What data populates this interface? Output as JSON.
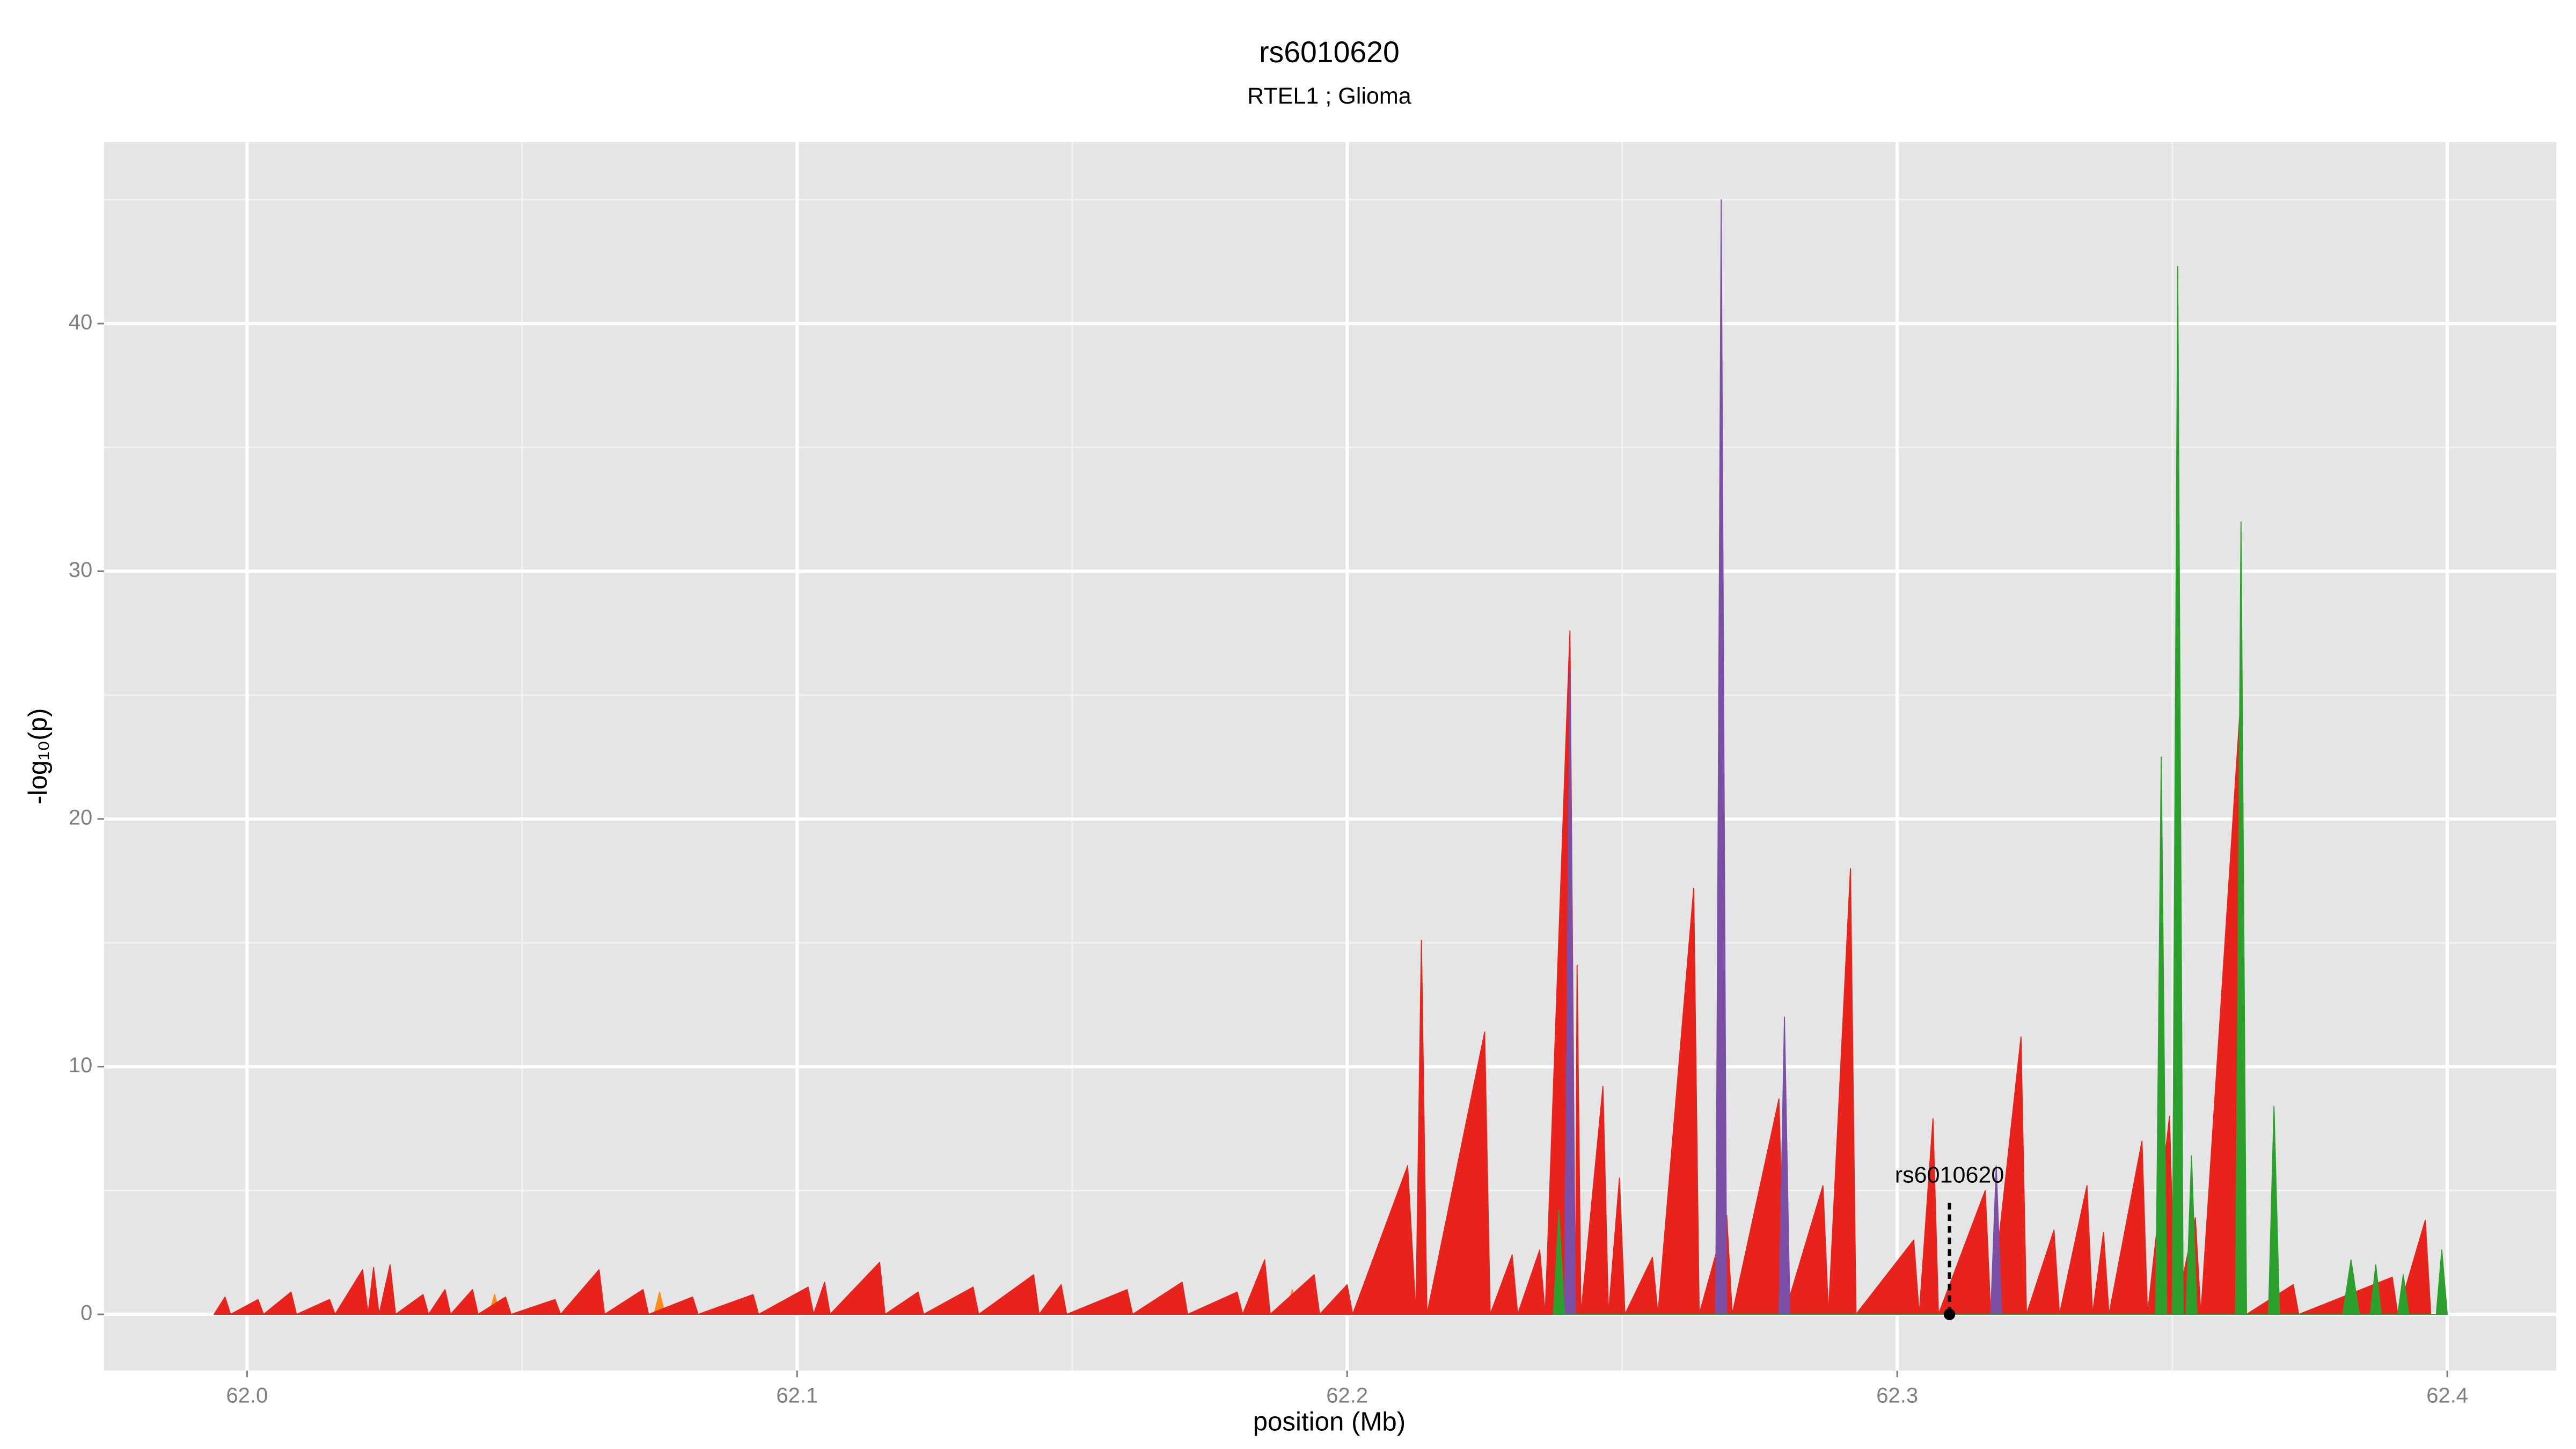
{
  "chart_data": {
    "type": "area",
    "title": "rs6010620",
    "subtitle": "RTEL1 ; Glioma",
    "x_label": "position (Mb)",
    "y_label": "-log₁₀(p)",
    "xlim": [
      61.974,
      62.4198
    ],
    "ylim": [
      -2.27,
      47.33
    ],
    "xticks": [
      {
        "value": 62,
        "label": "62.0"
      },
      62.1,
      62.2,
      62.3,
      62.4
    ],
    "yticks": [
      0,
      10,
      20,
      30,
      40
    ],
    "xminor": [
      62.05,
      62.15,
      62.25,
      62.35
    ],
    "yminor": [
      5,
      15,
      25,
      35,
      45
    ],
    "grid": true,
    "series": [
      {
        "color": "#ff8c1a",
        "x": [
          62.044,
          62.045,
          62.046,
          62.074,
          62.075,
          62.076,
          62.189,
          62.19,
          62.191
        ],
        "values": [
          0,
          0.8,
          0,
          0,
          0.9,
          0,
          0,
          1.0,
          0
        ]
      },
      {
        "color": "#e8231c",
        "x": [
          61.994,
          61.996,
          61.997,
          62.002,
          62.003,
          62.008,
          62.009,
          62.015,
          62.016,
          62.021,
          62.022,
          62.023,
          62.024,
          62.026,
          62.027,
          62.032,
          62.033,
          62.036,
          62.037,
          62.041,
          62.042,
          62.047,
          62.048,
          62.056,
          62.057,
          62.064,
          62.065,
          62.072,
          62.073,
          62.081,
          62.082,
          62.092,
          62.093,
          62.102,
          62.103,
          62.105,
          62.106,
          62.115,
          62.116,
          62.122,
          62.123,
          62.132,
          62.133,
          62.143,
          62.144,
          62.148,
          62.149,
          62.16,
          62.161,
          62.17,
          62.171,
          62.18,
          62.181,
          62.185,
          62.186,
          62.194,
          62.195,
          62.2,
          62.201,
          62.211,
          62.2125,
          62.2135,
          62.2145,
          62.225,
          62.226,
          62.23,
          62.231,
          62.235,
          62.236,
          62.2405,
          62.2415,
          62.2418,
          62.2425,
          62.2465,
          62.2475,
          62.2495,
          62.2505,
          62.2555,
          62.2565,
          62.263,
          62.264,
          62.269,
          62.27,
          62.2785,
          62.2795,
          62.2865,
          62.2875,
          62.2915,
          62.2925,
          62.303,
          62.304,
          62.3065,
          62.3075,
          62.316,
          62.317,
          62.3225,
          62.3235,
          62.3285,
          62.3295,
          62.3345,
          62.3355,
          62.3375,
          62.3385,
          62.3445,
          62.3455,
          62.3495,
          62.3505,
          62.3542,
          62.3552,
          62.3625,
          62.3635,
          62.372,
          62.373,
          62.39,
          62.391,
          62.396,
          62.397,
          62.4
        ],
        "values": [
          0,
          0.7,
          0,
          0.6,
          0,
          0.9,
          0,
          0.6,
          0,
          1.8,
          0,
          1.9,
          0,
          2.0,
          0,
          0.8,
          0,
          1.0,
          0,
          1.0,
          0,
          0.7,
          0,
          0.6,
          0,
          1.8,
          0,
          1.0,
          0,
          0.7,
          0,
          0.8,
          0,
          1.1,
          0,
          1.3,
          0,
          2.1,
          0,
          0.9,
          0,
          1.1,
          0,
          1.6,
          0,
          1.2,
          0,
          1.0,
          0,
          1.3,
          0,
          0.9,
          0,
          2.2,
          0,
          1.6,
          0,
          1.2,
          0,
          6.0,
          0,
          15.1,
          0,
          11.4,
          0,
          2.4,
          0,
          2.6,
          0,
          27.6,
          0,
          14.1,
          0,
          9.2,
          0,
          5.5,
          0,
          2.3,
          0,
          17.2,
          0,
          4.0,
          0,
          8.7,
          0,
          5.2,
          0,
          18.0,
          0,
          3.0,
          0,
          7.9,
          0,
          5.0,
          0,
          11.2,
          0,
          3.4,
          0,
          5.2,
          0,
          3.3,
          0,
          7.0,
          0,
          8.0,
          0,
          3.9,
          0,
          25.0,
          0,
          1.2,
          0,
          1.5,
          0,
          3.8,
          0,
          0
        ]
      },
      {
        "color": "#7b4fa6",
        "x": [
          62.2395,
          62.2405,
          62.2415,
          62.267,
          62.268,
          62.269,
          62.2785,
          62.2795,
          62.2805,
          62.317,
          62.318,
          62.319
        ],
        "values": [
          0,
          26.0,
          0,
          0,
          45.0,
          0,
          0,
          12.0,
          0,
          0,
          6.0,
          0
        ]
      },
      {
        "color": "#2ca02c",
        "x": [
          62.2375,
          62.2385,
          62.2395,
          62.347,
          62.348,
          62.349,
          62.35,
          62.351,
          62.352,
          62.3525,
          62.3535,
          62.3545,
          62.3615,
          62.3625,
          62.3635,
          62.3675,
          62.3685,
          62.3695,
          62.381,
          62.3825,
          62.384,
          62.386,
          62.387,
          62.388,
          62.391,
          62.392,
          62.393,
          62.398,
          62.399,
          62.4
        ],
        "values": [
          0,
          4.2,
          0,
          0,
          22.5,
          0,
          0,
          42.3,
          0,
          0,
          6.4,
          0,
          0,
          32.0,
          0,
          0,
          8.4,
          0,
          0,
          2.2,
          0,
          0,
          2.0,
          0,
          0,
          1.6,
          0,
          0,
          2.6,
          0
        ]
      }
    ],
    "annotation": {
      "text": "rs6010620",
      "x": 62.3095,
      "y_top": 4.5,
      "y_point": 0
    }
  }
}
